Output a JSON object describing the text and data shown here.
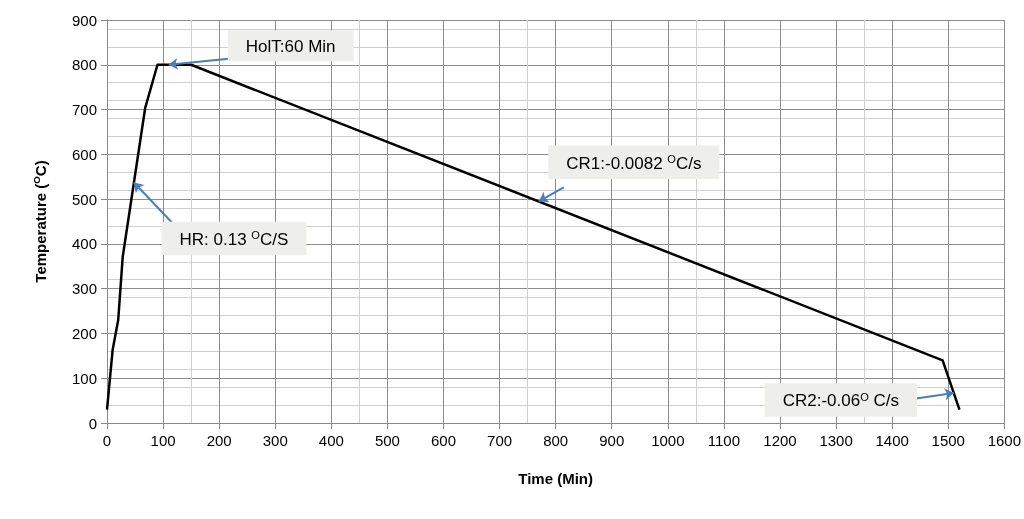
{
  "chart_data": {
    "type": "line",
    "xlabel": "Time (Min)",
    "ylabel": "Temperature ($^{O}$C)",
    "x": [
      0,
      10,
      20,
      28,
      68,
      90,
      150,
      1490,
      1520
    ],
    "series": [
      {
        "color": "#000000",
        "values": [
          30,
          163,
          230,
          371,
          703,
          800,
          800,
          140,
          30
        ]
      }
    ],
    "xlim": [
      0,
      1600
    ],
    "xticks": [
      0,
      100,
      200,
      300,
      400,
      500,
      600,
      700,
      800,
      900,
      1000,
      1100,
      1200,
      1300,
      1400,
      1500,
      1600
    ],
    "ylim": [
      0,
      900
    ],
    "yticks": [
      0,
      100,
      200,
      300,
      400,
      500,
      600,
      700,
      800,
      900
    ],
    "grid": true,
    "marker": "none",
    "line_style": "solid",
    "annotations": [
      {
        "text": "HolT:60 Min",
        "x": 110,
        "y": 800
      },
      {
        "text": "HR: 0.13 $^{O}$C/S",
        "x": 48,
        "y": 537
      },
      {
        "text": "CR1:-0.0082 $^{O}$C/s",
        "x": 770,
        "y": 495
      },
      {
        "text": "CR2:-0.06$^{O}$ C/s",
        "x": 1510,
        "y": 67
      }
    ]
  }
}
